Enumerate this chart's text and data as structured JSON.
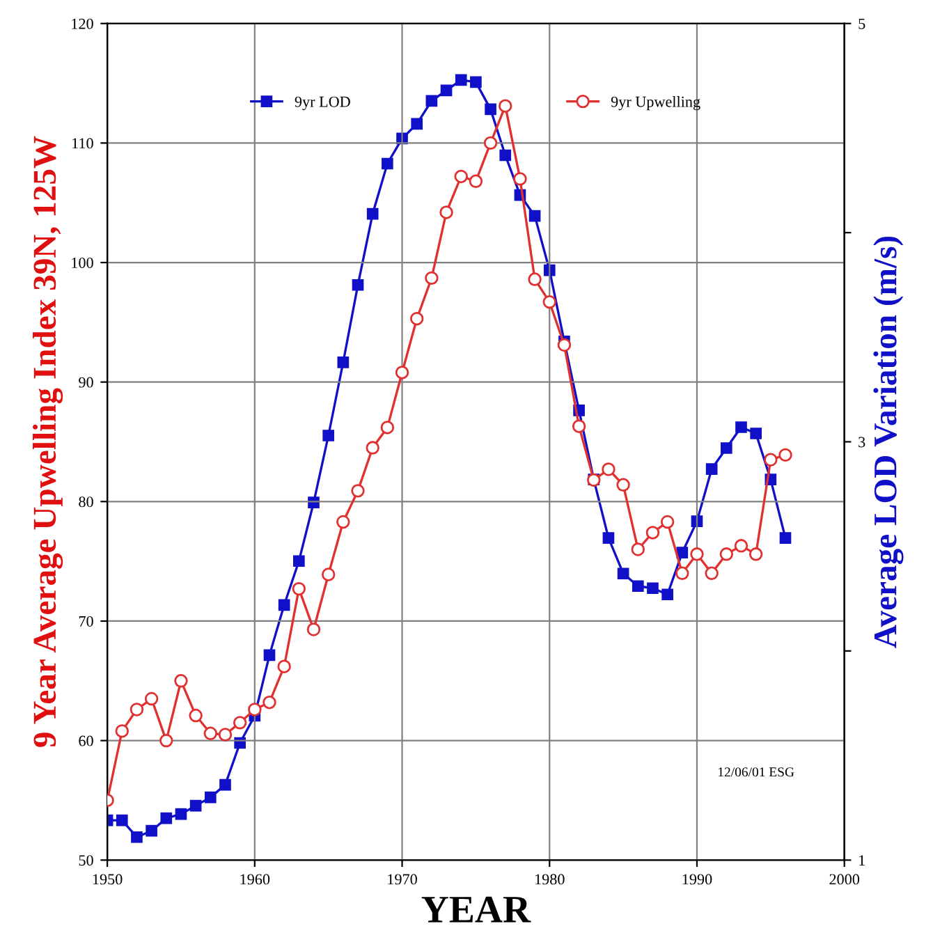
{
  "chart_data": {
    "type": "line",
    "xlabel": "YEAR",
    "ylabel": "9 Year Average Upwelling Index 39N, 125W",
    "y2label": "Average LOD Variation (m/s)",
    "x": [
      1950,
      1951,
      1952,
      1953,
      1954,
      1955,
      1956,
      1957,
      1958,
      1959,
      1960,
      1961,
      1962,
      1963,
      1964,
      1965,
      1966,
      1967,
      1968,
      1969,
      1970,
      1971,
      1972,
      1973,
      1974,
      1975,
      1976,
      1977,
      1978,
      1979,
      1980,
      1981,
      1982,
      1983,
      1984,
      1985,
      1986,
      1987,
      1988,
      1989,
      1990,
      1991,
      1992,
      1993,
      1994,
      1995,
      1996
    ],
    "series": [
      {
        "name": "9yr LOD",
        "color": "#1010c8",
        "axis": "y2",
        "marker": "square",
        "values": [
          1.19,
          1.19,
          1.11,
          1.14,
          1.2,
          1.22,
          1.26,
          1.3,
          1.36,
          1.56,
          1.69,
          1.98,
          2.22,
          2.43,
          2.71,
          3.03,
          3.38,
          3.75,
          4.09,
          4.33,
          4.45,
          4.52,
          4.63,
          4.68,
          4.73,
          4.72,
          4.59,
          4.37,
          4.18,
          4.08,
          3.82,
          3.48,
          3.15,
          2.82,
          2.54,
          2.37,
          2.31,
          2.3,
          2.27,
          2.47,
          2.62,
          2.87,
          2.97,
          3.07,
          3.04,
          2.82,
          2.54
        ]
      },
      {
        "name": "9yr Upwelling",
        "color": "#e03030",
        "marker": "circle",
        "values": [
          55.0,
          60.8,
          62.6,
          63.5,
          60.0,
          65.0,
          62.1,
          60.6,
          60.5,
          61.5,
          62.6,
          63.2,
          66.2,
          72.7,
          69.3,
          73.9,
          78.3,
          80.9,
          84.5,
          86.2,
          90.8,
          95.3,
          98.7,
          104.2,
          107.2,
          106.8,
          110.0,
          113.1,
          107.0,
          98.6,
          96.7,
          93.1,
          86.3,
          81.8,
          82.7,
          81.4,
          76.0,
          77.4,
          78.3,
          74.0,
          75.6,
          74.0,
          75.6,
          76.3,
          75.6,
          83.5,
          83.9
        ]
      }
    ],
    "xlim": [
      1950,
      2000
    ],
    "xticks": [
      1950,
      1960,
      1970,
      1980,
      1990,
      2000
    ],
    "ylim": [
      50,
      120
    ],
    "yticks": [
      50,
      60,
      70,
      80,
      90,
      100,
      110,
      120
    ],
    "y2lim": [
      1,
      5
    ],
    "y2ticks": [
      1,
      {
        "value": 2,
        "label": null
      },
      3,
      {
        "value": 4,
        "label": null
      },
      5
    ],
    "grid": true,
    "legend": "top",
    "line_style": "solid",
    "annotations": [
      "12/06/01 ESG"
    ]
  }
}
